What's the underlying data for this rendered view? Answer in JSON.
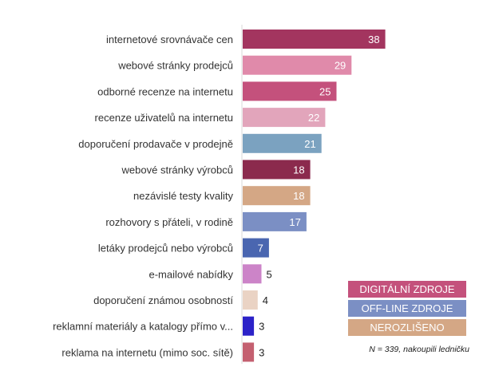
{
  "chart_data": {
    "type": "bar",
    "orientation": "horizontal",
    "categories": [
      "internetové srovnávače cen",
      "webové stránky prodejců",
      "odborné recenze na internetu",
      "recenze uživatelů na internetu",
      "doporučení prodavače v prodejně",
      "webové stránky výrobců",
      "nezávislé testy kvality",
      "rozhovory s přáteli, v rodině",
      "letáky prodejců nebo výrobců",
      "e-mailové nabídky",
      "doporučení známou osobností",
      "reklamní materiály a katalogy přímo v...",
      "reklama na internetu (mimo soc. sítě)"
    ],
    "values": [
      38,
      29,
      25,
      22,
      21,
      18,
      18,
      17,
      7,
      5,
      4,
      3,
      3
    ],
    "bar_colors": [
      "#a3355f",
      "#e08aaa",
      "#c4517c",
      "#e2a5bb",
      "#7ba2c0",
      "#8b2a4d",
      "#d4a785",
      "#7b8fc4",
      "#4a66b0",
      "#cc84c8",
      "#ead3c4",
      "#2c22c8",
      "#c46070"
    ],
    "value_label_colors": [
      "#ffffff",
      "#ffffff",
      "#ffffff",
      "#ffffff",
      "#ffffff",
      "#ffffff",
      "#ffffff",
      "#ffffff",
      "#ffffff",
      "#222222",
      "#222222",
      "#222222",
      "#222222"
    ],
    "xlim": [
      0,
      40
    ],
    "grid": false,
    "legend": {
      "placement": "bottom-right",
      "entries": [
        {
          "label": "DIGITÁLNÍ ZDROJE",
          "color": "#c4517c"
        },
        {
          "label": "OFF-LINE ZDROJE",
          "color": "#7b8fc4"
        },
        {
          "label": "NEROZLIŠENO",
          "color": "#d4a785"
        }
      ]
    },
    "note": "N = 339, nakoupili ledničku"
  }
}
